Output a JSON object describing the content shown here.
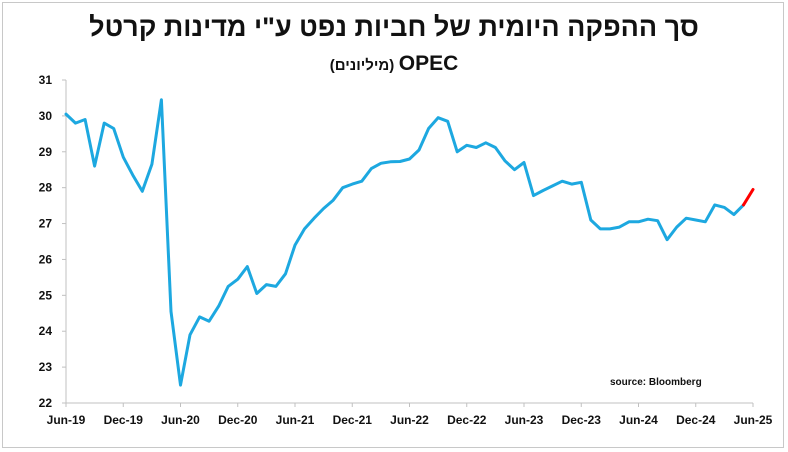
{
  "chart_data": {
    "type": "line",
    "title": "סך ההפקה היומית של חביות נפט ע\"י מדינות קרטל",
    "subtitle_main": "OPEC",
    "subtitle_unit": "(מיליונים)",
    "source": "source: Bloomberg",
    "ylim": [
      22,
      31
    ],
    "yticks": [
      22,
      23,
      24,
      25,
      26,
      27,
      28,
      29,
      30,
      31
    ],
    "xlim": [
      0,
      72
    ],
    "xticks": [
      {
        "label": "Jun-19",
        "x": 0
      },
      {
        "label": "Dec-19",
        "x": 6
      },
      {
        "label": "Jun-20",
        "x": 12
      },
      {
        "label": "Dec-20",
        "x": 18
      },
      {
        "label": "Jun-21",
        "x": 24
      },
      {
        "label": "Dec-21",
        "x": 30
      },
      {
        "label": "Jun-22",
        "x": 36
      },
      {
        "label": "Dec-22",
        "x": 42
      },
      {
        "label": "Jun-23",
        "x": 48
      },
      {
        "label": "Dec-23",
        "x": 54
      },
      {
        "label": "Jun-24",
        "x": 60
      },
      {
        "label": "Dec-24",
        "x": 66
      },
      {
        "label": "Jun-25",
        "x": 72
      }
    ],
    "grid": false,
    "legend": "none",
    "series": [
      {
        "color": "#1da8e0",
        "x": [
          0,
          1,
          2,
          3,
          4,
          5,
          6,
          7,
          8,
          9,
          10,
          11,
          12,
          13,
          14,
          15,
          16,
          17,
          18,
          19,
          20,
          21,
          22,
          23,
          24,
          25,
          26,
          27,
          28,
          29,
          30,
          31,
          32,
          33,
          34,
          35,
          36,
          37,
          38,
          39,
          40,
          41,
          42,
          43,
          44,
          45,
          46,
          47,
          48,
          49,
          50,
          51,
          52,
          53,
          54,
          55,
          56,
          57,
          58,
          59,
          60,
          61,
          62,
          63,
          64,
          65,
          66,
          67,
          68,
          69,
          70,
          71
        ],
        "values": [
          30.05,
          29.8,
          29.9,
          28.6,
          29.8,
          29.65,
          28.85,
          28.35,
          27.9,
          28.65,
          30.45,
          24.55,
          22.5,
          23.9,
          24.4,
          24.28,
          24.7,
          25.25,
          25.45,
          25.8,
          25.05,
          25.3,
          25.25,
          25.6,
          26.4,
          26.85,
          27.15,
          27.42,
          27.65,
          28.0,
          28.1,
          28.18,
          28.53,
          28.68,
          28.72,
          28.73,
          28.8,
          29.05,
          29.65,
          29.95,
          29.85,
          29.0,
          29.18,
          29.12,
          29.25,
          29.12,
          28.75,
          28.5,
          28.7,
          27.78,
          27.92,
          28.05,
          28.18,
          28.1,
          28.15,
          27.1,
          26.85,
          26.85,
          26.9,
          27.05,
          27.05,
          27.12,
          27.08,
          26.55,
          26.9,
          27.15,
          27.1,
          27.05,
          27.52,
          27.45,
          27.25,
          27.52
        ]
      },
      {
        "color": "#ff0000",
        "x": [
          71,
          72
        ],
        "values": [
          27.52,
          27.95
        ]
      }
    ]
  }
}
